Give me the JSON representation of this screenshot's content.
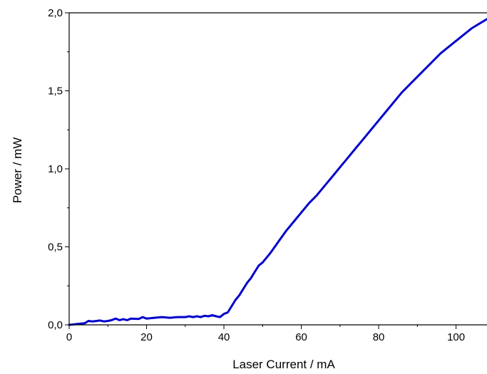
{
  "chart_data": {
    "type": "line",
    "title": "",
    "xlabel": "Laser Current / mA",
    "ylabel": "Power / mW",
    "xlim": [
      0,
      108
    ],
    "ylim": [
      0,
      2.0
    ],
    "x_ticks": [
      0,
      20,
      40,
      60,
      80,
      100
    ],
    "x_tick_labels": [
      "0",
      "20",
      "40",
      "60",
      "80",
      "100"
    ],
    "y_ticks": [
      0,
      0.5,
      1.0,
      1.5,
      2.0
    ],
    "y_tick_labels": [
      "0,0",
      "0,5",
      "1,0",
      "1,5",
      "2,0"
    ],
    "grid": false,
    "legend": "none",
    "series_color": "#0000cc",
    "axis_color": "#000000",
    "series": [
      {
        "x": [
          0,
          2,
          4,
          5,
          6,
          8,
          9,
          10,
          11,
          12,
          13,
          14,
          15,
          16,
          18,
          19,
          20,
          22,
          24,
          26,
          28,
          30,
          31,
          32,
          33,
          34,
          35,
          36,
          37,
          38,
          39,
          40,
          41,
          42,
          43,
          44,
          45,
          46,
          47,
          48,
          49,
          50,
          52,
          54,
          56,
          58,
          60,
          62,
          64,
          66,
          68,
          70,
          72,
          74,
          76,
          78,
          80,
          82,
          84,
          86,
          88,
          90,
          92,
          94,
          96,
          98,
          100,
          102,
          104,
          106,
          108
        ],
        "y": [
          0.0,
          0.005,
          0.01,
          0.025,
          0.022,
          0.028,
          0.022,
          0.025,
          0.03,
          0.04,
          0.03,
          0.036,
          0.03,
          0.04,
          0.038,
          0.05,
          0.04,
          0.045,
          0.05,
          0.045,
          0.05,
          0.05,
          0.055,
          0.05,
          0.055,
          0.05,
          0.058,
          0.055,
          0.062,
          0.055,
          0.05,
          0.07,
          0.08,
          0.12,
          0.16,
          0.19,
          0.23,
          0.27,
          0.3,
          0.34,
          0.38,
          0.4,
          0.46,
          0.53,
          0.6,
          0.66,
          0.72,
          0.78,
          0.83,
          0.89,
          0.95,
          1.01,
          1.07,
          1.13,
          1.19,
          1.25,
          1.31,
          1.37,
          1.43,
          1.49,
          1.54,
          1.59,
          1.64,
          1.69,
          1.74,
          1.78,
          1.82,
          1.86,
          1.9,
          1.93,
          1.96
        ]
      }
    ]
  }
}
